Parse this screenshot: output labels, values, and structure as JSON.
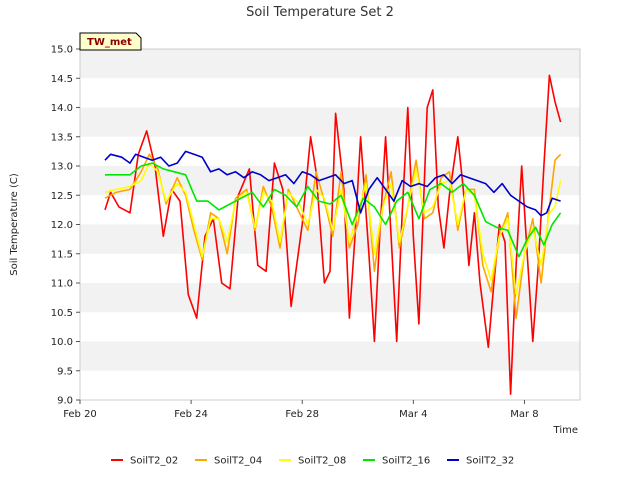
{
  "chart_data": {
    "type": "line",
    "title": "Soil Temperature Set 2",
    "xlabel": "Time",
    "ylabel": "Soil Temperature (C)",
    "site_label": "TW_met",
    "x_ticks": [
      "Feb 20",
      "Feb 24",
      "Feb 28",
      "Mar 4",
      "Mar 8"
    ],
    "x_tick_days": [
      0,
      4,
      8,
      12,
      16
    ],
    "xlim_days": [
      0,
      18
    ],
    "ylim": [
      9.0,
      15.0
    ],
    "y_ticks": [
      "9.0",
      "9.5",
      "10.0",
      "10.5",
      "11.0",
      "11.5",
      "12.0",
      "12.5",
      "13.0",
      "13.5",
      "14.0",
      "14.5",
      "15.0"
    ],
    "grid": "horizontal bands",
    "legend_position": "bottom",
    "series": [
      {
        "name": "SoilT2_02",
        "color": "#ff0000",
        "days": [
          0.9,
          1.1,
          1.4,
          1.8,
          2.1,
          2.4,
          2.7,
          3.0,
          3.3,
          3.6,
          3.9,
          4.2,
          4.5,
          4.8,
          5.1,
          5.4,
          5.7,
          6.1,
          6.4,
          6.7,
          7.0,
          7.3,
          7.6,
          8.0,
          8.3,
          8.5,
          8.8,
          9.0,
          9.2,
          9.5,
          9.7,
          9.9,
          10.1,
          10.4,
          10.6,
          10.8,
          11.0,
          11.2,
          11.4,
          11.6,
          11.8,
          12.0,
          12.2,
          12.5,
          12.7,
          12.9,
          13.1,
          13.3,
          13.6,
          13.8,
          14.0,
          14.2,
          14.4,
          14.7,
          14.9,
          15.1,
          15.3,
          15.5,
          15.7,
          15.9,
          16.1,
          16.3,
          16.5,
          16.7,
          16.9,
          17.1,
          17.3
        ],
        "values": [
          12.25,
          12.55,
          12.3,
          12.2,
          13.2,
          13.6,
          13.0,
          11.8,
          12.6,
          12.4,
          10.8,
          10.4,
          11.8,
          12.1,
          11.0,
          10.9,
          12.5,
          12.95,
          11.3,
          11.2,
          13.05,
          12.6,
          10.6,
          12.0,
          13.5,
          12.9,
          11.0,
          11.2,
          13.9,
          12.6,
          10.4,
          11.8,
          13.5,
          11.5,
          10.0,
          11.9,
          13.5,
          11.8,
          10.0,
          12.2,
          14.0,
          11.8,
          10.3,
          14.0,
          14.3,
          12.3,
          11.6,
          12.5,
          13.5,
          12.6,
          11.3,
          12.2,
          11.0,
          9.9,
          11.0,
          12.0,
          11.7,
          9.1,
          11.3,
          13.0,
          11.5,
          10.0,
          11.3,
          13.0,
          14.55,
          14.1,
          13.75
        ]
      },
      {
        "name": "SoilT2_04",
        "color": "#ffa500",
        "days": [
          0.9,
          1.3,
          1.8,
          2.2,
          2.5,
          2.8,
          3.1,
          3.5,
          3.8,
          4.1,
          4.4,
          4.7,
          5.0,
          5.3,
          5.6,
          6.0,
          6.3,
          6.6,
          6.9,
          7.2,
          7.5,
          7.9,
          8.2,
          8.5,
          8.8,
          9.1,
          9.4,
          9.7,
          10.0,
          10.3,
          10.6,
          10.9,
          11.2,
          11.5,
          11.8,
          12.1,
          12.4,
          12.7,
          13.0,
          13.3,
          13.6,
          13.9,
          14.2,
          14.5,
          14.8,
          15.1,
          15.4,
          15.7,
          16.0,
          16.3,
          16.6,
          16.9,
          17.1,
          17.3
        ],
        "values": [
          12.45,
          12.55,
          12.6,
          12.9,
          13.2,
          12.95,
          12.35,
          12.8,
          12.5,
          11.9,
          11.4,
          12.2,
          12.1,
          11.5,
          12.45,
          12.6,
          11.9,
          12.65,
          12.3,
          11.6,
          12.6,
          12.2,
          11.9,
          12.9,
          12.4,
          11.8,
          12.9,
          11.6,
          12.0,
          12.85,
          11.2,
          12.3,
          12.9,
          11.6,
          12.3,
          13.1,
          12.1,
          12.2,
          12.8,
          12.9,
          11.9,
          12.6,
          12.6,
          11.3,
          10.85,
          11.8,
          12.2,
          10.4,
          11.5,
          12.1,
          11.0,
          12.3,
          13.1,
          13.2
        ]
      },
      {
        "name": "SoilT2_08",
        "color": "#ffff00",
        "days": [
          0.9,
          1.3,
          1.8,
          2.2,
          2.5,
          2.8,
          3.1,
          3.5,
          3.8,
          4.1,
          4.4,
          4.7,
          5.0,
          5.3,
          5.6,
          6.0,
          6.3,
          6.6,
          6.9,
          7.2,
          7.5,
          7.9,
          8.2,
          8.5,
          8.8,
          9.1,
          9.4,
          9.7,
          10.0,
          10.3,
          10.6,
          10.9,
          11.2,
          11.5,
          11.8,
          12.1,
          12.4,
          12.7,
          13.0,
          13.3,
          13.6,
          13.9,
          14.2,
          14.5,
          14.8,
          15.1,
          15.4,
          15.7,
          16.0,
          16.3,
          16.6,
          16.9,
          17.1,
          17.3
        ],
        "values": [
          12.55,
          12.6,
          12.65,
          12.75,
          13.05,
          12.9,
          12.4,
          12.7,
          12.55,
          12.0,
          11.45,
          12.1,
          12.1,
          11.7,
          12.4,
          12.55,
          11.95,
          12.55,
          12.4,
          11.7,
          12.55,
          12.35,
          12.0,
          12.6,
          12.45,
          11.9,
          12.6,
          11.7,
          12.2,
          12.7,
          11.5,
          12.3,
          12.7,
          11.7,
          12.3,
          12.95,
          12.2,
          12.3,
          12.7,
          12.75,
          12.0,
          12.6,
          12.5,
          11.5,
          11.05,
          11.8,
          12.1,
          10.8,
          11.5,
          11.95,
          11.3,
          12.2,
          12.3,
          12.75
        ]
      },
      {
        "name": "SoilT2_16",
        "color": "#00e600",
        "days": [
          0.9,
          1.3,
          1.8,
          2.2,
          2.6,
          3.0,
          3.4,
          3.8,
          4.2,
          4.6,
          5.0,
          5.4,
          5.8,
          6.2,
          6.6,
          7.0,
          7.4,
          7.8,
          8.2,
          8.6,
          9.0,
          9.4,
          9.8,
          10.2,
          10.6,
          11.0,
          11.4,
          11.8,
          12.2,
          12.6,
          13.0,
          13.4,
          13.8,
          14.2,
          14.6,
          15.0,
          15.4,
          15.8,
          16.1,
          16.4,
          16.7,
          17.0,
          17.3
        ],
        "values": [
          12.85,
          12.85,
          12.85,
          13.0,
          13.05,
          12.95,
          12.9,
          12.85,
          12.4,
          12.4,
          12.25,
          12.35,
          12.45,
          12.55,
          12.3,
          12.6,
          12.5,
          12.3,
          12.65,
          12.4,
          12.35,
          12.5,
          12.0,
          12.45,
          12.3,
          12.0,
          12.4,
          12.55,
          12.1,
          12.6,
          12.7,
          12.55,
          12.7,
          12.5,
          12.05,
          11.95,
          11.9,
          11.45,
          11.75,
          11.95,
          11.65,
          12.0,
          12.2
        ]
      },
      {
        "name": "SoilT2_32",
        "color": "#0000cc",
        "days": [
          0.9,
          1.1,
          1.5,
          1.8,
          2.0,
          2.3,
          2.6,
          2.9,
          3.2,
          3.5,
          3.8,
          4.1,
          4.4,
          4.7,
          5.0,
          5.3,
          5.6,
          5.9,
          6.2,
          6.5,
          6.8,
          7.1,
          7.4,
          7.7,
          8.0,
          8.3,
          8.6,
          8.9,
          9.2,
          9.5,
          9.8,
          10.1,
          10.4,
          10.7,
          11.0,
          11.3,
          11.6,
          11.9,
          12.2,
          12.5,
          12.8,
          13.1,
          13.4,
          13.7,
          14.0,
          14.3,
          14.6,
          14.9,
          15.2,
          15.5,
          15.8,
          16.1,
          16.4,
          16.6,
          16.8,
          17.0,
          17.3
        ],
        "values": [
          13.1,
          13.2,
          13.15,
          13.05,
          13.2,
          13.15,
          13.1,
          13.15,
          13.0,
          13.05,
          13.25,
          13.2,
          13.15,
          12.9,
          12.95,
          12.85,
          12.9,
          12.8,
          12.9,
          12.85,
          12.75,
          12.8,
          12.85,
          12.7,
          12.9,
          12.85,
          12.75,
          12.8,
          12.85,
          12.7,
          12.75,
          12.2,
          12.6,
          12.8,
          12.6,
          12.4,
          12.75,
          12.65,
          12.7,
          12.65,
          12.8,
          12.85,
          12.7,
          12.85,
          12.8,
          12.75,
          12.7,
          12.55,
          12.7,
          12.5,
          12.4,
          12.3,
          12.25,
          12.15,
          12.2,
          12.45,
          12.4
        ]
      }
    ]
  }
}
